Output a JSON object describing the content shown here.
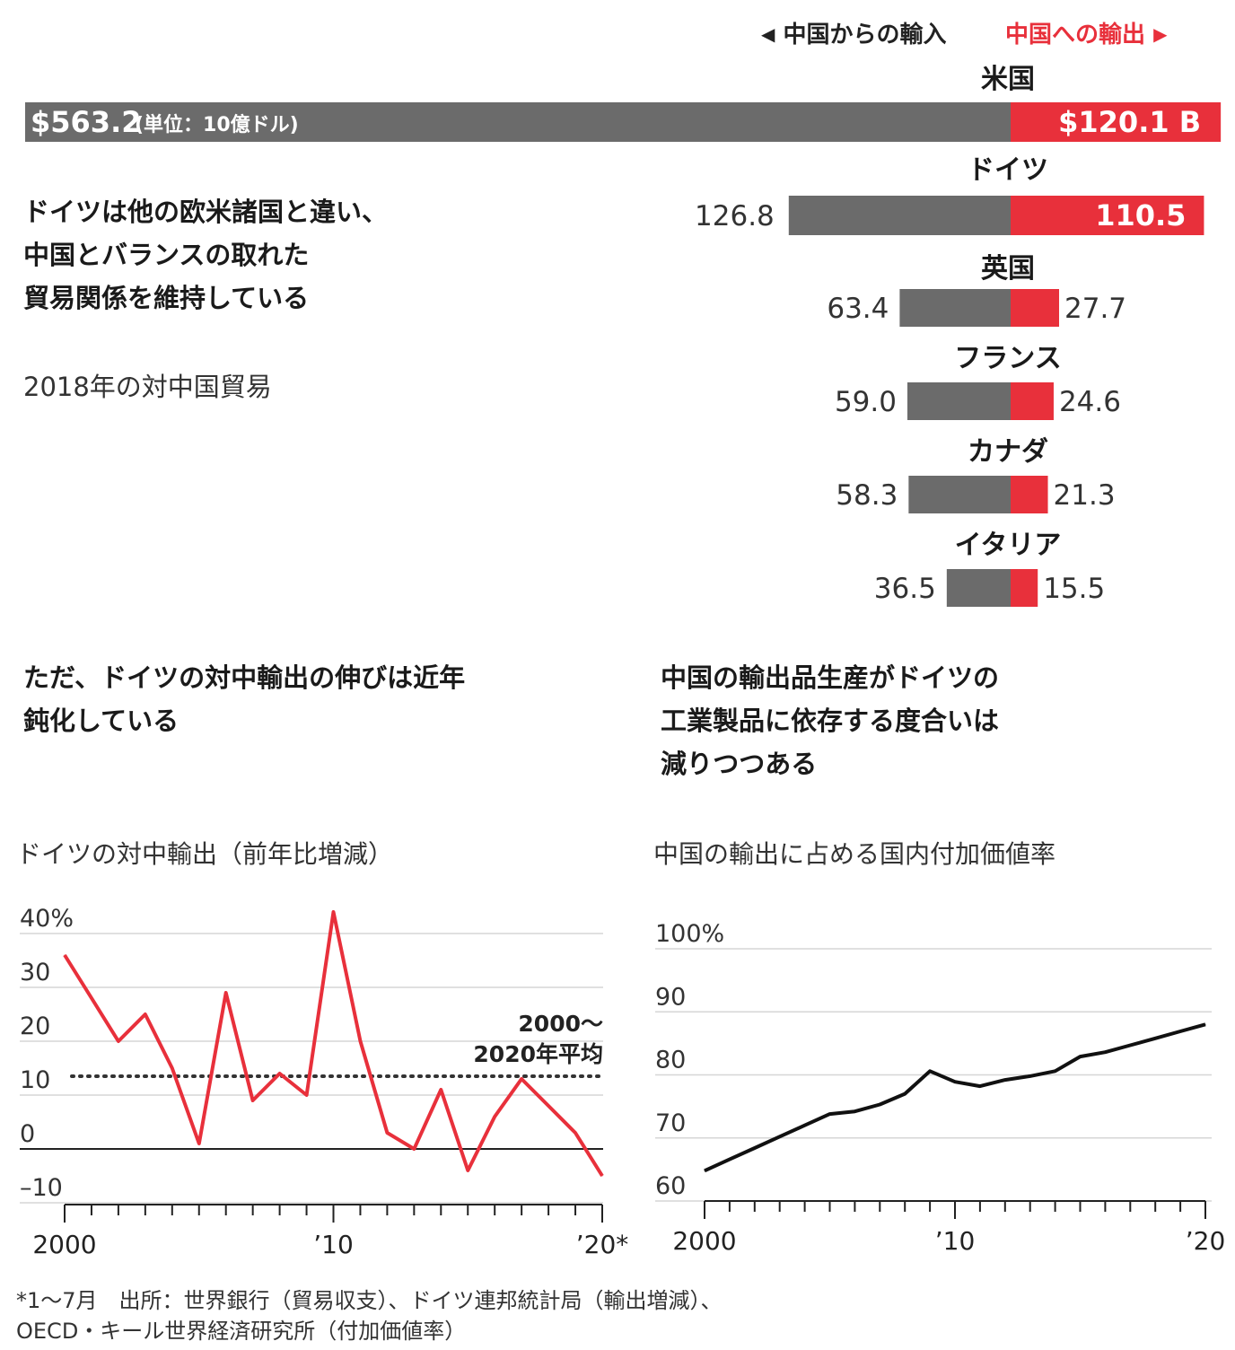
{
  "legend": {
    "imports_label": "中国からの輸入",
    "exports_label": "中国への輸出",
    "imports_color": "#6b6b6b",
    "exports_color": "#e8303b"
  },
  "headline": {
    "line1": "ドイツは他の欧米諸国と違い、",
    "line2": "中国とバランスの取れた",
    "line3": "貿易関係を維持している"
  },
  "subtitle": "2018年の対中国貿易",
  "left_heading": {
    "line1": "ただ、ドイツの対中輸出の伸びは近年",
    "line2": "鈍化している"
  },
  "right_heading": {
    "line1": "中国の輸出品生産がドイツの",
    "line2": "工業製品に依存する度合いは",
    "line3": "減りつつある"
  },
  "footnote": {
    "line1": "*1〜7月　出所：世界銀行（貿易収支）、ドイツ連邦統計局（輸出増減）、",
    "line2": "OECD・キール世界経済研究所（付加価値率）"
  },
  "chart_data": [
    {
      "type": "bar",
      "title": "",
      "unit_note": "(単位：10億ドル)",
      "categories": [
        "米国",
        "ドイツ",
        "英国",
        "フランス",
        "カナダ",
        "イタリア"
      ],
      "series": [
        {
          "name": "中国からの輸入",
          "values": [
            563.2,
            126.8,
            63.4,
            59.0,
            58.3,
            36.5
          ],
          "labels": [
            "$563.2",
            "126.8",
            "63.4",
            "59.0",
            "58.3",
            "36.5"
          ]
        },
        {
          "name": "中国への輸出",
          "values": [
            120.1,
            110.5,
            27.7,
            24.6,
            21.3,
            15.5
          ],
          "labels": [
            "$120.1 B",
            "110.5",
            "27.7",
            "24.6",
            "21.3",
            "15.5"
          ]
        }
      ]
    },
    {
      "type": "line",
      "title": "ドイツの対中輸出（前年比増減）",
      "x": [
        2000,
        2001,
        2002,
        2003,
        2004,
        2005,
        2006,
        2007,
        2008,
        2009,
        2010,
        2011,
        2012,
        2013,
        2014,
        2015,
        2016,
        2017,
        2018,
        2019,
        2020
      ],
      "values": [
        36,
        28,
        20,
        25,
        15,
        1,
        29,
        9,
        14,
        10,
        44,
        20,
        3,
        0,
        11,
        -4,
        6,
        13,
        8,
        3,
        -5
      ],
      "average": 13.5,
      "average_label": [
        "2000〜",
        "2020年平均"
      ],
      "ylim": [
        -10,
        40
      ],
      "yticks": [
        -10,
        0,
        10,
        20,
        30,
        40
      ],
      "ytick_labels": [
        "–10",
        "0",
        "10",
        "20",
        "30",
        "40%"
      ],
      "xtick_labels": [
        {
          "x": 2000,
          "label": "2000"
        },
        {
          "x": 2010,
          "label": "’10"
        },
        {
          "x": 2020,
          "label": "’20*"
        }
      ]
    },
    {
      "type": "line",
      "title": "中国の輸出に占める国内付加価値率",
      "x": [
        2000,
        2001,
        2002,
        2003,
        2004,
        2005,
        2006,
        2007,
        2008,
        2009,
        2010,
        2011,
        2012,
        2013,
        2014,
        2015,
        2016,
        2017,
        2018,
        2019,
        2020
      ],
      "values": [
        64.8,
        66.6,
        68.4,
        70.2,
        72,
        73.8,
        74.2,
        75.3,
        77,
        80.6,
        78.9,
        78.2,
        79.2,
        79.8,
        80.6,
        82.9,
        83.6,
        84.7,
        85.8,
        86.9,
        88
      ],
      "ylim": [
        60,
        100
      ],
      "yticks": [
        60,
        70,
        80,
        90,
        100
      ],
      "ytick_labels": [
        "60",
        "70",
        "80",
        "90",
        "100%"
      ],
      "xtick_labels": [
        {
          "x": 2000,
          "label": "2000"
        },
        {
          "x": 2010,
          "label": "’10"
        },
        {
          "x": 2020,
          "label": "’20"
        }
      ]
    }
  ]
}
